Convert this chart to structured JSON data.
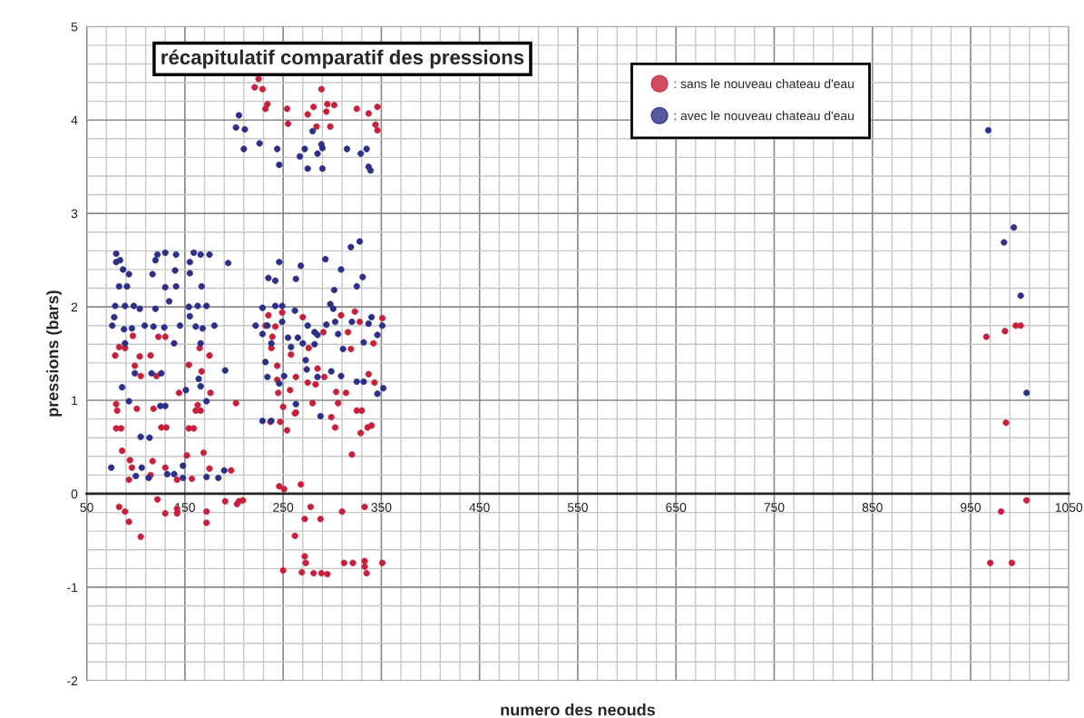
{
  "chart_data": {
    "type": "scatter",
    "title": "récapitulatif comparatif des pressions",
    "xlabel": "numero des neouds",
    "ylabel": "pressions (bars)",
    "xlim": [
      50,
      1050
    ],
    "ylim": [
      -2,
      5
    ],
    "xticks": [
      50,
      150,
      250,
      350,
      450,
      550,
      650,
      750,
      850,
      950,
      1050
    ],
    "yticks": [
      -2,
      -1,
      0,
      1,
      2,
      3,
      4,
      5
    ],
    "grid": true,
    "legend": "top right",
    "marker": "circle",
    "series": [
      {
        "name": ": sans le nouveau chateau d'eau",
        "color": "#c8203a",
        "x": [
          97,
          123,
          130,
          83,
          89,
          165,
          79,
          104,
          115,
          175,
          99,
          105,
          121,
          154,
          167,
          144,
          176,
          202,
          80,
          81,
          101,
          118,
          163,
          161,
          166,
          80,
          85,
          126,
          131,
          154,
          159,
          86,
          152,
          169,
          94,
          117,
          130,
          96,
          93,
          115,
          142,
          157,
          175,
          197,
          191,
          203,
          122,
          83,
          89,
          93,
          130,
          142,
          142,
          172,
          172,
          105,
          225,
          221,
          229,
          234,
          232,
          254,
          255,
          275,
          281,
          289,
          295,
          302,
          294,
          284,
          298,
          325,
          337,
          346,
          344,
          346,
          235,
          249,
          270,
          309,
          323,
          351,
          232,
          242,
          328,
          239,
          291,
          316,
          238,
          276,
          319,
          342,
          258,
          244,
          285,
          337,
          244,
          263,
          275,
          292,
          283,
          257,
          245,
          304,
          314,
          343,
          250,
          280,
          306,
          325,
          330,
          263,
          262,
          237,
          247,
          254,
          299,
          303,
          336,
          340,
          329,
          320,
          246,
          251,
          268,
          205,
          209,
          278,
          272,
          288,
          310,
          333,
          262,
          272,
          273,
          250,
          269,
          281,
          289,
          295,
          312,
          321,
          333,
          333,
          335,
          351,
          966,
          985,
          996,
          1001,
          986,
          1007,
          981,
          970,
          992
        ],
        "values": [
          1.69,
          1.68,
          1.68,
          1.57,
          1.56,
          1.56,
          1.48,
          1.47,
          1.48,
          1.48,
          1.37,
          1.26,
          1.26,
          1.38,
          1.31,
          1.08,
          1.08,
          0.97,
          0.96,
          0.89,
          0.91,
          0.91,
          0.95,
          0.89,
          0.89,
          0.7,
          0.7,
          0.71,
          0.71,
          0.7,
          0.7,
          0.46,
          0.41,
          0.44,
          0.36,
          0.35,
          0.28,
          0.28,
          0.15,
          0.2,
          0.15,
          0.16,
          0.27,
          0.25,
          -0.08,
          -0.11,
          -0.06,
          -0.14,
          -0.19,
          -0.3,
          -0.21,
          -0.16,
          -0.21,
          -0.19,
          -0.31,
          -0.46,
          4.44,
          4.35,
          4.33,
          4.17,
          4.12,
          4.12,
          3.96,
          4.06,
          4.14,
          4.33,
          4.17,
          4.16,
          4.09,
          3.93,
          3.93,
          4.12,
          4.07,
          4.14,
          3.95,
          3.89,
          1.91,
          1.94,
          1.89,
          1.91,
          1.95,
          1.88,
          1.8,
          1.79,
          1.84,
          1.68,
          1.73,
          1.73,
          1.56,
          1.56,
          1.55,
          1.61,
          1.49,
          1.37,
          1.34,
          1.28,
          1.22,
          1.25,
          1.19,
          1.25,
          1.17,
          1.11,
          1.08,
          1.09,
          1.08,
          1.19,
          0.93,
          0.97,
          0.97,
          0.89,
          0.89,
          0.87,
          0.86,
          0.77,
          0.77,
          0.68,
          0.82,
          0.71,
          0.71,
          0.73,
          0.65,
          0.42,
          0.08,
          0.05,
          0.1,
          -0.08,
          -0.07,
          -0.14,
          -0.27,
          -0.27,
          -0.19,
          -0.14,
          -0.45,
          -0.67,
          -0.74,
          -0.82,
          -0.84,
          -0.85,
          -0.85,
          -0.86,
          -0.74,
          -0.74,
          -0.72,
          -0.78,
          -0.85,
          -0.74,
          1.68,
          1.74,
          1.8,
          1.8,
          0.76,
          -0.07,
          -0.19,
          -0.74,
          -0.74
        ]
      },
      {
        "name": ": avec le nouveau chateau d'eau",
        "color": "#2b2f88",
        "x": [
          80,
          80,
          84,
          122,
          130,
          141,
          159,
          166,
          175,
          194,
          120,
          87,
          93,
          117,
          140,
          155,
          155,
          83,
          91,
          130,
          141,
          167,
          79,
          89,
          98,
          104,
          120,
          134,
          154,
          163,
          172,
          78,
          155,
          76,
          88,
          96,
          109,
          118,
          129,
          145,
          161,
          168,
          180,
          89,
          139,
          166,
          99,
          116,
          126,
          191,
          164,
          86,
          151,
          166,
          93,
          172,
          125,
          130,
          105,
          114,
          75,
          106,
          100,
          113,
          132,
          139,
          148,
          148,
          172,
          184,
          190,
          205,
          202,
          211,
          210,
          226,
          244,
          246,
          272,
          280,
          267,
          285,
          289,
          290,
          275,
          290,
          315,
          329,
          335,
          337,
          339,
          319,
          328,
          246,
          268,
          293,
          309,
          235,
          242,
          263,
          331,
          325,
          302,
          229,
          242,
          249,
          262,
          298,
          301,
          222,
          234,
          249,
          275,
          282,
          294,
          303,
          306,
          320,
          337,
          340,
          351,
          229,
          255,
          265,
          285,
          332,
          346,
          238,
          258,
          270,
          282,
          311,
          232,
          273,
          234,
          251,
          246,
          274,
          285,
          299,
          309,
          325,
          332,
          346,
          352,
          263,
          229,
          238,
          288,
          968,
          994,
          984,
          1001,
          1007
        ],
        "values": [
          2.57,
          2.48,
          2.5,
          2.56,
          2.58,
          2.56,
          2.58,
          2.56,
          2.56,
          2.47,
          2.5,
          2.4,
          2.35,
          2.35,
          2.39,
          2.36,
          2.48,
          2.22,
          2.22,
          2.21,
          2.22,
          2.22,
          2.01,
          2.01,
          2.01,
          1.98,
          1.98,
          2.06,
          2.0,
          2.01,
          2.01,
          1.89,
          1.9,
          1.8,
          1.76,
          1.77,
          1.8,
          1.79,
          1.78,
          1.8,
          1.79,
          1.77,
          1.8,
          1.61,
          1.61,
          1.61,
          1.29,
          1.29,
          1.29,
          1.32,
          1.23,
          1.14,
          1.11,
          1.15,
          0.99,
          0.99,
          0.94,
          0.94,
          0.61,
          0.6,
          0.28,
          0.28,
          0.19,
          0.17,
          0.21,
          0.21,
          0.3,
          0.17,
          0.18,
          0.17,
          0.25,
          4.05,
          3.92,
          3.9,
          3.69,
          3.75,
          3.69,
          3.52,
          3.69,
          3.88,
          3.61,
          3.64,
          3.74,
          3.7,
          3.48,
          3.48,
          3.69,
          3.64,
          3.69,
          3.5,
          3.46,
          2.64,
          2.7,
          2.48,
          2.44,
          2.51,
          2.4,
          2.31,
          2.28,
          2.3,
          2.32,
          2.22,
          2.18,
          1.99,
          2.01,
          2.01,
          1.96,
          2.03,
          1.98,
          1.8,
          1.8,
          1.84,
          1.8,
          1.73,
          1.81,
          1.84,
          1.71,
          1.84,
          1.82,
          1.89,
          1.8,
          1.71,
          1.67,
          1.67,
          1.7,
          1.62,
          1.7,
          1.61,
          1.57,
          1.61,
          1.6,
          1.55,
          1.41,
          1.43,
          1.25,
          1.26,
          1.18,
          1.33,
          1.25,
          1.31,
          1.26,
          1.2,
          1.2,
          1.07,
          1.13,
          0.96,
          0.78,
          0.78,
          0.83,
          3.89,
          2.85,
          2.69,
          2.12,
          1.08
        ]
      }
    ]
  }
}
